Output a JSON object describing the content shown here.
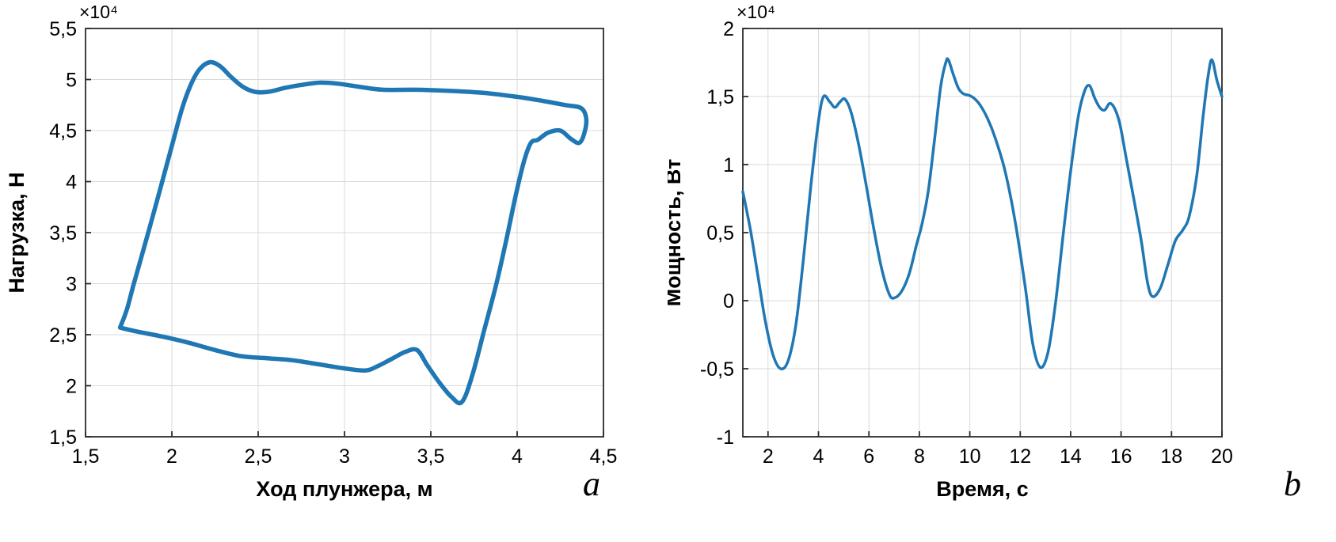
{
  "page": {
    "background": "#ffffff"
  },
  "chart_data": [
    {
      "type": "line",
      "title": "",
      "xlabel": "Ход плунжера, м",
      "ylabel": "Нагрузка, Н",
      "axis_multiplier": "×10⁴",
      "corner_label": "a",
      "xlim": [
        1.5,
        4.5
      ],
      "ylim": [
        1.5,
        5.5
      ],
      "grid": true,
      "legend": "none",
      "line_color": "#1f77b4",
      "line_width": 5.5,
      "grid_color": "#d9d9d9",
      "box_color": "#2b2b2b",
      "text_color": "#000000",
      "xticks": {
        "values": [
          1.5,
          2,
          2.5,
          3,
          3.5,
          4,
          4.5
        ],
        "labels": [
          "1,5",
          "2",
          "2,5",
          "3",
          "3,5",
          "4",
          "4,5"
        ]
      },
      "yticks": {
        "values": [
          1.5,
          2,
          2.5,
          3,
          3.5,
          4,
          4.5,
          5,
          5.5
        ],
        "labels": [
          "1,5",
          "2",
          "2,5",
          "3",
          "3,5",
          "4",
          "4,5",
          "5",
          "5,5"
        ]
      },
      "series": [
        {
          "name": "load-vs-stroke-loop",
          "x": [
            1.7,
            1.74,
            1.78,
            1.85,
            1.92,
            2.0,
            2.06,
            2.11,
            2.16,
            2.22,
            2.28,
            2.34,
            2.41,
            2.48,
            2.56,
            2.66,
            2.76,
            2.86,
            2.96,
            3.08,
            3.22,
            3.4,
            3.6,
            3.8,
            4.0,
            4.15,
            4.28,
            4.37,
            4.4,
            4.39,
            4.36,
            4.31,
            4.25,
            4.18,
            4.12,
            4.08,
            4.04,
            3.99,
            3.94,
            3.88,
            3.81,
            3.74,
            3.68,
            3.62,
            3.55,
            3.48,
            3.42,
            3.35,
            3.27,
            3.19,
            3.12,
            3.0,
            2.85,
            2.7,
            2.55,
            2.4,
            2.25,
            2.1,
            1.95,
            1.8,
            1.7
          ],
          "y": [
            2.57,
            2.75,
            3.0,
            3.42,
            3.85,
            4.35,
            4.72,
            4.95,
            5.1,
            5.17,
            5.13,
            5.03,
            4.93,
            4.88,
            4.88,
            4.92,
            4.95,
            4.97,
            4.96,
            4.93,
            4.9,
            4.9,
            4.89,
            4.87,
            4.83,
            4.79,
            4.75,
            4.72,
            4.62,
            4.48,
            4.38,
            4.42,
            4.5,
            4.48,
            4.41,
            4.38,
            4.2,
            3.85,
            3.45,
            3.0,
            2.55,
            2.1,
            1.84,
            1.89,
            2.03,
            2.2,
            2.35,
            2.33,
            2.26,
            2.19,
            2.15,
            2.17,
            2.21,
            2.25,
            2.27,
            2.29,
            2.35,
            2.42,
            2.48,
            2.53,
            2.57
          ]
        }
      ]
    },
    {
      "type": "line",
      "title": "",
      "xlabel": "Время, с",
      "ylabel": "Мощность, Вт",
      "axis_multiplier": "×10⁴",
      "corner_label": "b",
      "xlim": [
        1,
        20
      ],
      "ylim": [
        -1,
        2
      ],
      "grid": true,
      "legend": "none",
      "line_color": "#1f77b4",
      "line_width": 3.5,
      "grid_color": "#d9d9d9",
      "box_color": "#2b2b2b",
      "text_color": "#000000",
      "xticks": {
        "values": [
          2,
          4,
          6,
          8,
          10,
          12,
          14,
          16,
          18,
          20
        ],
        "labels": [
          "2",
          "4",
          "6",
          "8",
          "10",
          "12",
          "14",
          "16",
          "18",
          "20"
        ]
      },
      "yticks": {
        "values": [
          -1,
          -0.5,
          0,
          0.5,
          1,
          1.5,
          2
        ],
        "labels": [
          "-1",
          "-0,5",
          "0",
          "0,5",
          "1",
          "1,5",
          "2"
        ]
      },
      "series": [
        {
          "name": "power-vs-time",
          "x": [
            1.0,
            1.3,
            1.6,
            1.9,
            2.2,
            2.5,
            2.8,
            3.1,
            3.4,
            3.7,
            4.0,
            4.2,
            4.45,
            4.65,
            4.85,
            5.05,
            5.3,
            5.6,
            5.9,
            6.2,
            6.5,
            6.8,
            7.0,
            7.3,
            7.6,
            7.9,
            8.1,
            8.35,
            8.6,
            8.85,
            9.05,
            9.15,
            9.35,
            9.55,
            9.75,
            9.95,
            10.15,
            10.4,
            10.7,
            11.0,
            11.4,
            11.8,
            12.2,
            12.5,
            12.8,
            13.1,
            13.4,
            13.7,
            14.0,
            14.3,
            14.55,
            14.75,
            14.95,
            15.15,
            15.35,
            15.55,
            15.75,
            15.95,
            16.2,
            16.5,
            16.8,
            17.05,
            17.25,
            17.55,
            17.85,
            18.15,
            18.45,
            18.7,
            19.0,
            19.25,
            19.45,
            19.6,
            19.8,
            20.0
          ],
          "y": [
            0.8,
            0.52,
            0.18,
            -0.16,
            -0.4,
            -0.5,
            -0.44,
            -0.18,
            0.3,
            0.85,
            1.32,
            1.5,
            1.46,
            1.42,
            1.46,
            1.48,
            1.38,
            1.14,
            0.84,
            0.52,
            0.24,
            0.05,
            0.02,
            0.07,
            0.2,
            0.42,
            0.56,
            0.8,
            1.18,
            1.58,
            1.75,
            1.77,
            1.66,
            1.56,
            1.52,
            1.51,
            1.49,
            1.44,
            1.34,
            1.2,
            0.95,
            0.58,
            0.1,
            -0.32,
            -0.49,
            -0.38,
            -0.02,
            0.48,
            0.95,
            1.35,
            1.54,
            1.58,
            1.49,
            1.42,
            1.4,
            1.45,
            1.41,
            1.3,
            1.05,
            0.75,
            0.44,
            0.13,
            0.03,
            0.09,
            0.26,
            0.44,
            0.52,
            0.62,
            0.92,
            1.35,
            1.65,
            1.77,
            1.62,
            1.5
          ]
        }
      ]
    }
  ]
}
